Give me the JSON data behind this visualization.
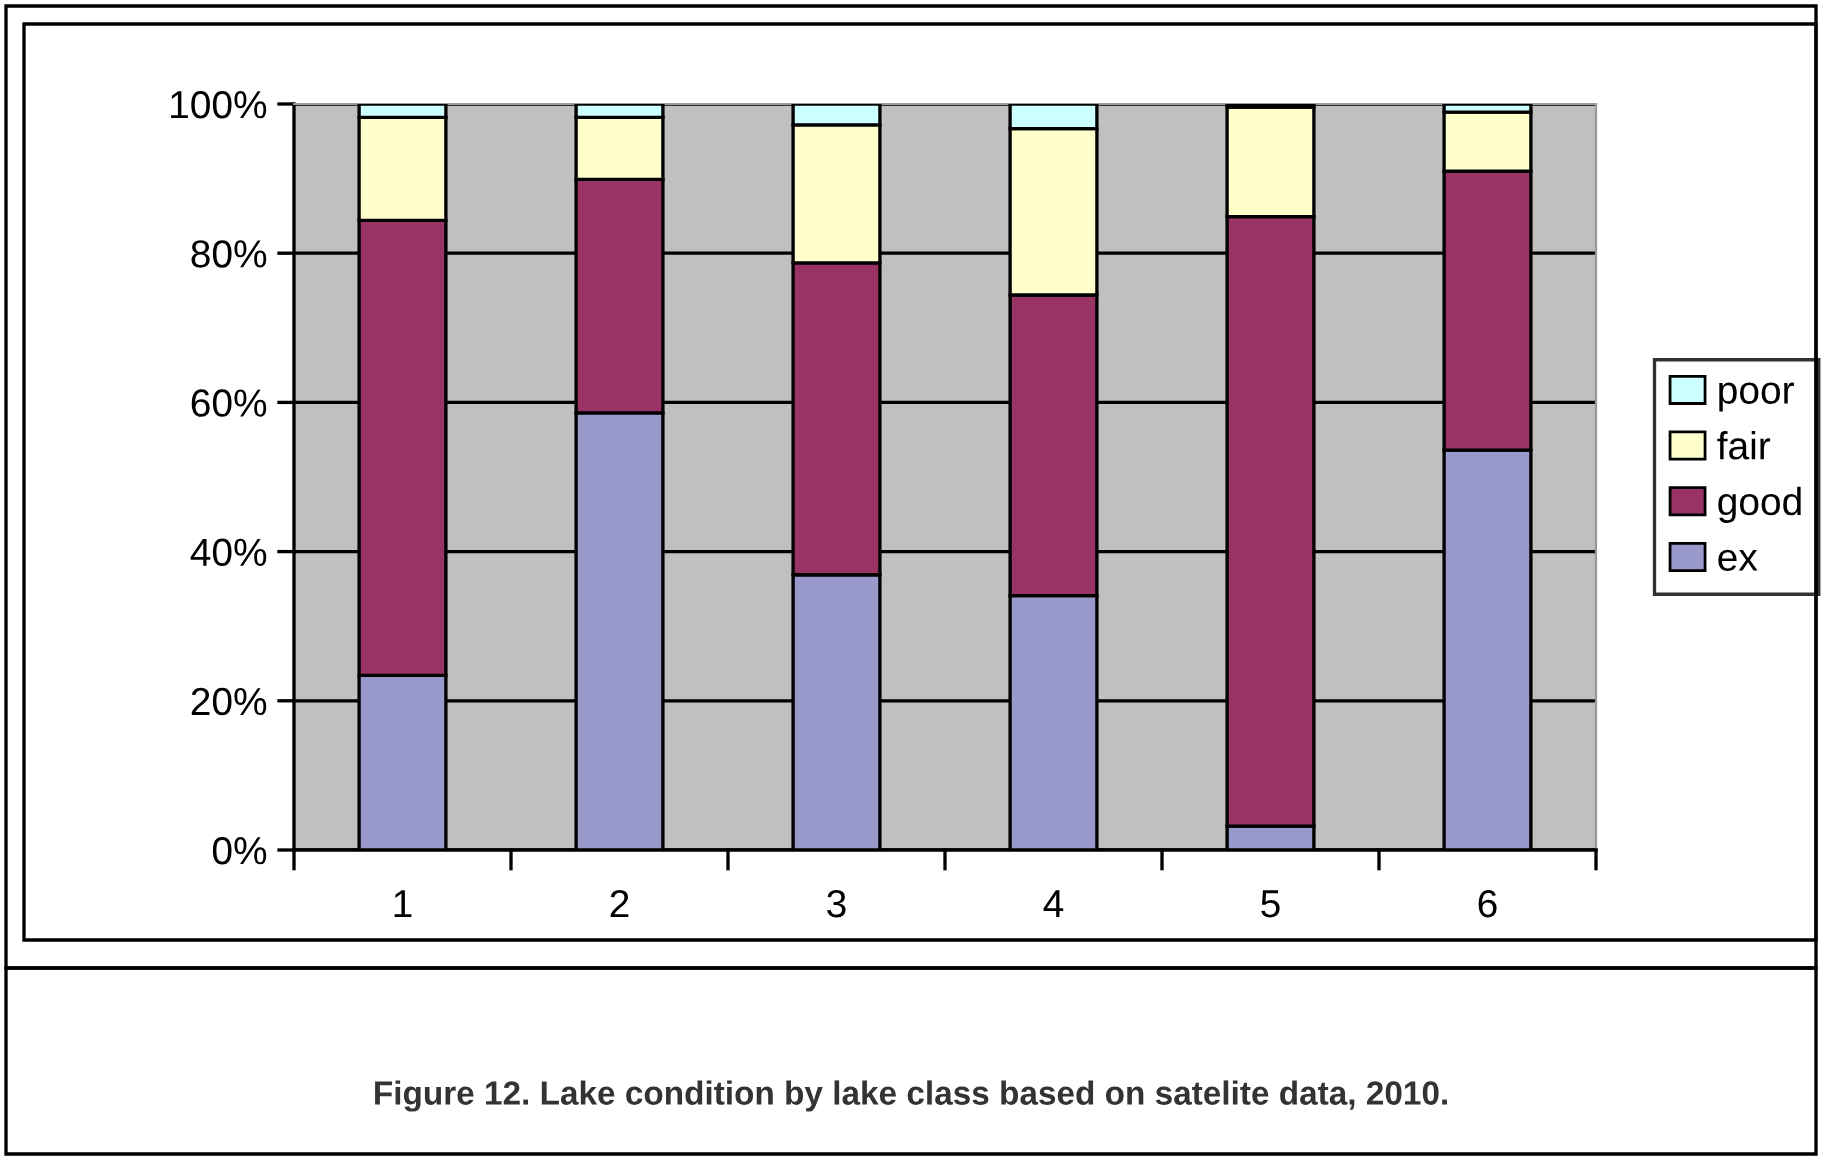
{
  "chart_data": {
    "type": "bar",
    "stacked": true,
    "categories": [
      "1",
      "2",
      "3",
      "4",
      "5",
      "6"
    ],
    "series": [
      {
        "name": "ex",
        "color": "#9999cc",
        "values": [
          23.4,
          58.6,
          36.9,
          34.1,
          3.2,
          53.6
        ]
      },
      {
        "name": "good",
        "color": "#993366",
        "values": [
          61.0,
          31.3,
          41.8,
          40.3,
          81.7,
          37.4
        ]
      },
      {
        "name": "fair",
        "color": "#ffffcc",
        "values": [
          13.8,
          8.3,
          18.5,
          22.3,
          14.7,
          7.9
        ]
      },
      {
        "name": "poor",
        "color": "#ccffff",
        "values": [
          1.8,
          1.8,
          2.8,
          3.3,
          0.4,
          1.1
        ]
      }
    ],
    "ylim": [
      0,
      100
    ],
    "yticks": [
      {
        "value": 0,
        "label": "0%"
      },
      {
        "value": 20,
        "label": "20%"
      },
      {
        "value": 40,
        "label": "40%"
      },
      {
        "value": 60,
        "label": "60%"
      },
      {
        "value": 80,
        "label": "80%"
      },
      {
        "value": 100,
        "label": "100%"
      }
    ],
    "grid": "y",
    "legend": "right",
    "annotations": [
      "Figure 12. Lake condition by lake class based on satelite data, 2010."
    ]
  }
}
